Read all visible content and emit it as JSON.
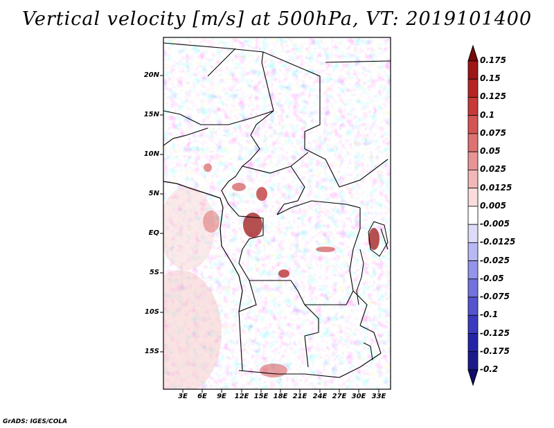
{
  "title": "Vertical velocity [m/s] at 500hPa, VT: 2019101400",
  "credit": "GrADS: IGES/COLA",
  "lat_labels": [
    "20N",
    "15N",
    "10N",
    "5N",
    "EQ",
    "5S",
    "10S",
    "15S"
  ],
  "lon_labels": [
    "3E",
    "6E",
    "9E",
    "12E",
    "15E",
    "18E",
    "21E",
    "24E",
    "27E",
    "30E",
    "33E"
  ],
  "colorbar": {
    "labels": [
      "0.175",
      "0.15",
      "0.125",
      "0.1",
      "0.075",
      "0.05",
      "0.025",
      "0.0125",
      "0.005",
      "-0.005",
      "-0.0125",
      "-0.025",
      "-0.05",
      "-0.075",
      "-0.1",
      "-0.125",
      "-0.175",
      "-0.2"
    ],
    "colors": [
      "#7a0a0a",
      "#9e1616",
      "#b82424",
      "#c83a3a",
      "#d45454",
      "#de7272",
      "#e89494",
      "#f2b8b8",
      "#fadcdc",
      "#ffffff",
      "#dcdcf8",
      "#b8b8f2",
      "#9494ea",
      "#7272de",
      "#5454d0",
      "#3a3ac0",
      "#2424a8",
      "#1a1a8a",
      "#100a6e"
    ]
  }
}
